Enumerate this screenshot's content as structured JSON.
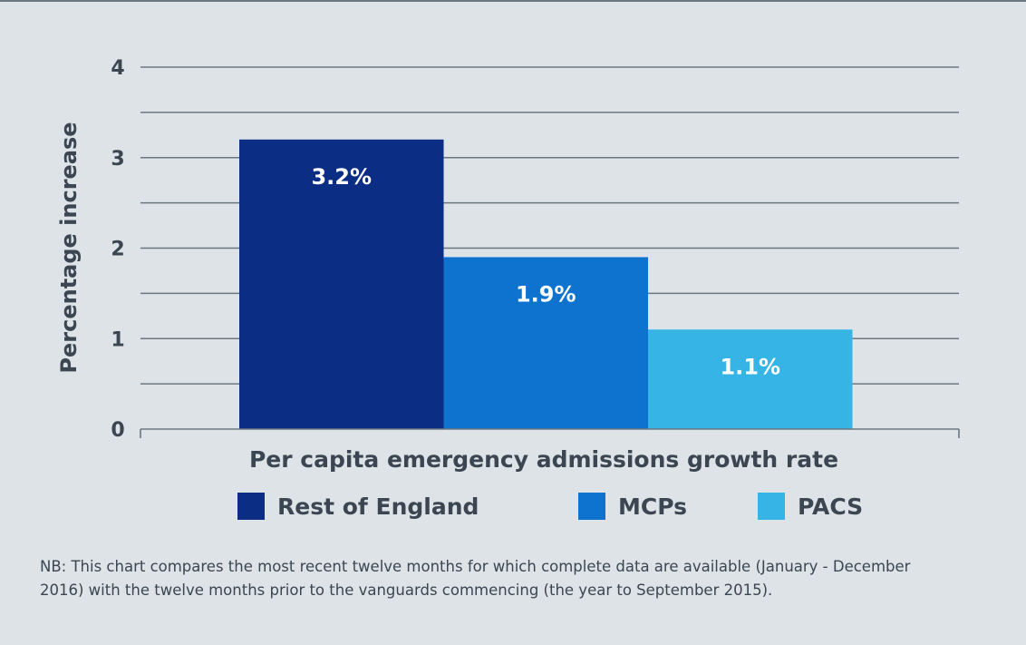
{
  "chart_data": {
    "type": "bar",
    "categories": [
      "Rest of England",
      "MCPs",
      "PACS"
    ],
    "values": [
      3.2,
      1.9,
      1.1
    ],
    "data_labels": [
      "3.2%",
      "1.9%",
      "1.1%"
    ],
    "colors": [
      "#0b2d83",
      "#0e72cf",
      "#36b4e6"
    ],
    "title": "",
    "xlabel": "Per capita emergency admissions growth rate",
    "ylabel": "Percentage increase",
    "ylim": [
      0,
      4
    ],
    "yticks": [
      "0",
      "1",
      "2",
      "3",
      "4"
    ],
    "grid": true,
    "legend_placement": "bottom"
  },
  "legend": [
    {
      "label": "Rest of England",
      "color": "#0b2d83"
    },
    {
      "label": "MCPs",
      "color": "#0e72cf"
    },
    {
      "label": "PACS",
      "color": "#36b4e6"
    }
  ],
  "note": "NB: This chart compares the most recent twelve months for which complete data are available (January - December 2016) with the twelve months prior to the vanguards commencing (the year to September 2015)."
}
